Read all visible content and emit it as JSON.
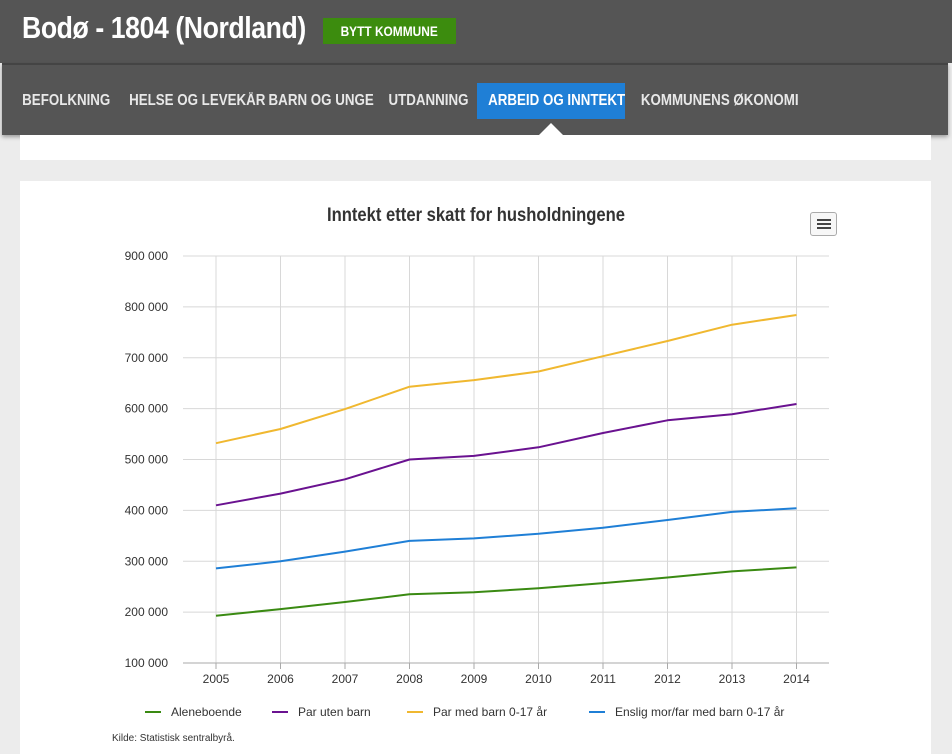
{
  "header": {
    "title": "Bodø - 1804 (Nordland)",
    "change_button": "BYTT KOMMUNE"
  },
  "nav": {
    "tabs": [
      {
        "label": "BEFOLKNING",
        "active": false
      },
      {
        "label": "HELSE OG LEVEKÅR",
        "active": false
      },
      {
        "label": "BARN OG UNGE",
        "active": false
      },
      {
        "label": "UTDANNING",
        "active": false
      },
      {
        "label": "ARBEID OG INNTEKT",
        "active": true
      },
      {
        "label": "KOMMUNENS ØKONOMI",
        "active": false
      }
    ]
  },
  "chart_menu_icon": "hamburger-menu-icon",
  "source": "Kilde: Statistisk sentralbyrå.",
  "colors": {
    "header_bg": "#555555",
    "button_green": "#3c8c0e",
    "tab_active": "#1f7fd6"
  },
  "chart_data": {
    "type": "line",
    "title": "Inntekt etter skatt for husholdningene",
    "x": [
      "2005",
      "2006",
      "2007",
      "2008",
      "2009",
      "2010",
      "2011",
      "2012",
      "2013",
      "2014"
    ],
    "ylim": [
      100000,
      900000
    ],
    "yticks": [
      100000,
      200000,
      300000,
      400000,
      500000,
      600000,
      700000,
      800000,
      900000
    ],
    "ytick_labels": [
      "100 000",
      "200 000",
      "300 000",
      "400 000",
      "500 000",
      "600 000",
      "700 000",
      "800 000",
      "900 000"
    ],
    "grid": true,
    "legend_position": "bottom",
    "series": [
      {
        "name": "Aleneboende",
        "color": "#3a8a12",
        "values": [
          193000,
          206000,
          220000,
          235000,
          239000,
          247000,
          257000,
          268000,
          280000,
          288000
        ]
      },
      {
        "name": "Par uten barn",
        "color": "#6a1290",
        "values": [
          410000,
          433000,
          461000,
          500000,
          507000,
          524000,
          552000,
          577000,
          589000,
          609000
        ]
      },
      {
        "name": "Par med barn 0-17 år",
        "color": "#f0b830",
        "values": [
          532000,
          560000,
          599000,
          643000,
          656000,
          673000,
          703000,
          733000,
          765000,
          784000
        ]
      },
      {
        "name": "Enslig mor/far med barn 0-17 år",
        "color": "#1f7fd6",
        "values": [
          286000,
          300000,
          319000,
          340000,
          345000,
          354000,
          366000,
          381000,
          397000,
          404000
        ]
      }
    ]
  }
}
